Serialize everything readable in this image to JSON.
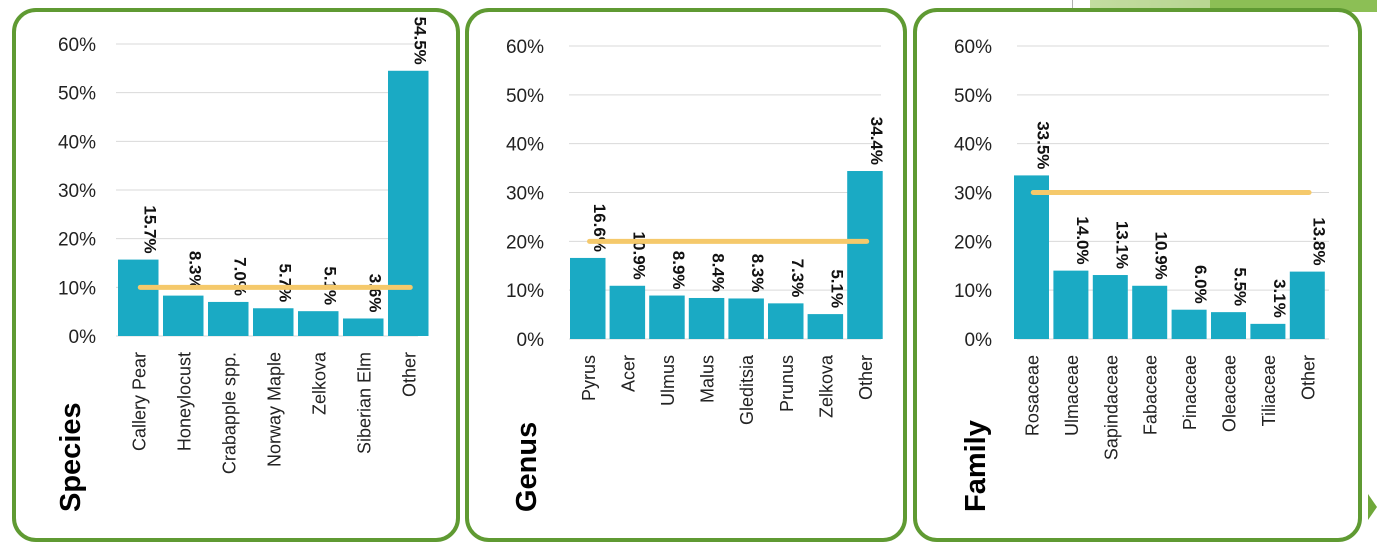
{
  "colors": {
    "bar": "#1aaac4",
    "reference_line": "#f5c96b",
    "panel_border": "#5f9a32",
    "grid": "#d9d9d9"
  },
  "chart_data": [
    {
      "type": "bar",
      "title": "Species",
      "categories": [
        "Callery Pear",
        "Honeylocust",
        "Crabapple spp.",
        "Norway Maple",
        "Zelkova",
        "Siberian Elm",
        "Other"
      ],
      "values": [
        15.7,
        8.3,
        7.0,
        5.7,
        5.1,
        3.6,
        54.5
      ],
      "data_labels": [
        "15.7%",
        "8.3%",
        "7.0%",
        "5.7%",
        "5.1%",
        "3.6%",
        "54.5%"
      ],
      "reference_line": 10,
      "ylim": [
        0,
        60
      ],
      "yticks": [
        0,
        10,
        20,
        30,
        40,
        50,
        60
      ],
      "ytick_labels": [
        "0%",
        "10%",
        "20%",
        "30%",
        "40%",
        "50%",
        "60%"
      ],
      "grid": true,
      "legend": "none"
    },
    {
      "type": "bar",
      "title": "Genus",
      "categories": [
        "Pyrus",
        "Acer",
        "Ulmus",
        "Malus",
        "Gleditsia",
        "Prunus",
        "Zelkova",
        "Other"
      ],
      "values": [
        16.6,
        10.9,
        8.9,
        8.4,
        8.3,
        7.3,
        5.1,
        34.4
      ],
      "data_labels": [
        "16.6%",
        "10.9%",
        "8.9%",
        "8.4%",
        "8.3%",
        "7.3%",
        "5.1%",
        "34.4%"
      ],
      "reference_line": 20,
      "ylim": [
        0,
        60
      ],
      "yticks": [
        0,
        10,
        20,
        30,
        40,
        50,
        60
      ],
      "ytick_labels": [
        "0%",
        "10%",
        "20%",
        "30%",
        "40%",
        "50%",
        "60%"
      ],
      "grid": true,
      "legend": "none"
    },
    {
      "type": "bar",
      "title": "Family",
      "categories": [
        "Rosaceae",
        "Ulmaceae",
        "Sapindaceae",
        "Fabaceae",
        "Pinaceae",
        "Oleaceae",
        "Tiliaceae",
        "Other"
      ],
      "values": [
        33.5,
        14.0,
        13.1,
        10.9,
        6.0,
        5.5,
        3.1,
        13.8
      ],
      "data_labels": [
        "33.5%",
        "14.0%",
        "13.1%",
        "10.9%",
        "6.0%",
        "5.5%",
        "3.1%",
        "13.8%"
      ],
      "reference_line": 30,
      "ylim": [
        0,
        60
      ],
      "yticks": [
        0,
        10,
        20,
        30,
        40,
        50,
        60
      ],
      "ytick_labels": [
        "0%",
        "10%",
        "20%",
        "30%",
        "40%",
        "50%",
        "60%"
      ],
      "grid": true,
      "legend": "none"
    }
  ]
}
